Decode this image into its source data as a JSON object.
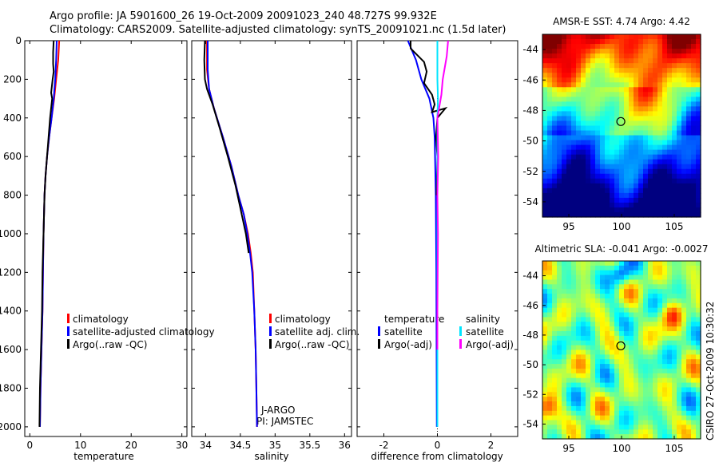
{
  "title_line1": "Argo profile: JA 5901600_26 19-Oct-2009 20091023_240 48.727S 99.932E",
  "title_line2": "Climatology: CARS2009. Satellite-adjusted climatology: synTS_20091021.nc (1.5d later)",
  "watermark": "CSIRO 27-Oct-2009 10:30:32",
  "colors": {
    "red": "#ff0000",
    "blue": "#0000ff",
    "black": "#000000",
    "cyan": "#00e5ff",
    "magenta": "#ff00ff"
  },
  "chart_data": [
    {
      "id": "temperature",
      "type": "line",
      "xlabel": "temperature",
      "xlim": [
        -1,
        31
      ],
      "ylim": [
        0,
        2050
      ],
      "y_inverted": true,
      "xticks": [
        0,
        10,
        20,
        30
      ],
      "xtick_labels": [
        "0",
        "10",
        "20",
        "30"
      ],
      "yticks": [
        0,
        200,
        400,
        600,
        800,
        1000,
        1200,
        1400,
        1600,
        1800,
        2000
      ],
      "ytick_labels": [
        "0",
        "200",
        "400",
        "600",
        "800",
        "1000",
        "1200",
        "1400",
        "1600",
        "1800",
        "2000"
      ],
      "legend": [
        "climatology",
        "satellite-adjusted climatology",
        "Argo(..raw -QC)"
      ],
      "legend_location": "lower-right",
      "series": [
        {
          "name": "climatology",
          "color": "#ff0000",
          "points": [
            [
              5.8,
              0
            ],
            [
              5.6,
              100
            ],
            [
              5.2,
              200
            ],
            [
              4.8,
              300
            ],
            [
              4.3,
              400
            ],
            [
              3.8,
              500
            ],
            [
              3.4,
              600
            ],
            [
              3.1,
              700
            ],
            [
              2.9,
              800
            ],
            [
              2.7,
              1000
            ],
            [
              2.6,
              1200
            ],
            [
              2.5,
              1400
            ],
            [
              2.3,
              1600
            ],
            [
              2.1,
              1800
            ],
            [
              2.0,
              2000
            ]
          ]
        },
        {
          "name": "satellite-adjusted climatology",
          "color": "#0000ff",
          "points": [
            [
              5.3,
              0
            ],
            [
              5.2,
              100
            ],
            [
              5.0,
              200
            ],
            [
              4.7,
              300
            ],
            [
              4.3,
              400
            ],
            [
              3.8,
              500
            ],
            [
              3.4,
              600
            ],
            [
              3.1,
              700
            ],
            [
              2.9,
              800
            ],
            [
              2.7,
              1000
            ],
            [
              2.6,
              1200
            ],
            [
              2.5,
              1400
            ],
            [
              2.3,
              1600
            ],
            [
              2.1,
              1800
            ],
            [
              2.0,
              2000
            ]
          ]
        },
        {
          "name": "Argo(..raw -QC)",
          "color": "#000000",
          "points": [
            [
              4.7,
              0
            ],
            [
              4.6,
              60
            ],
            [
              4.6,
              120
            ],
            [
              4.7,
              160
            ],
            [
              4.5,
              200
            ],
            [
              4.2,
              270
            ],
            [
              4.4,
              300
            ],
            [
              4.0,
              400
            ],
            [
              3.7,
              500
            ],
            [
              3.4,
              600
            ],
            [
              3.1,
              700
            ],
            [
              2.9,
              800
            ],
            [
              2.7,
              1000
            ],
            [
              2.5,
              1200
            ],
            [
              2.4,
              1400
            ],
            [
              2.2,
              1600
            ],
            [
              2.0,
              1800
            ],
            [
              1.9,
              2000
            ]
          ]
        }
      ]
    },
    {
      "id": "salinity",
      "type": "line",
      "xlabel": "salinity",
      "xlim": [
        33.8,
        36.1
      ],
      "ylim": [
        0,
        2050
      ],
      "y_inverted": true,
      "xticks": [
        34,
        34.5,
        35,
        35.5,
        36
      ],
      "xtick_labels": [
        "34",
        "34.5",
        "35",
        "35.5",
        "36"
      ],
      "legend": [
        "climatology",
        "satellite adj. clim.",
        "Argo(..raw -QC)"
      ],
      "legend_location": "lower-right",
      "annotations": [
        "J-ARGO",
        "PI: JAMSTEC"
      ],
      "series": [
        {
          "name": "climatology",
          "color": "#ff0000",
          "points": [
            [
              34.02,
              0
            ],
            [
              34.02,
              150
            ],
            [
              34.05,
              250
            ],
            [
              34.12,
              350
            ],
            [
              34.25,
              500
            ],
            [
              34.37,
              650
            ],
            [
              34.47,
              800
            ],
            [
              34.55,
              900
            ],
            [
              34.61,
              1000
            ],
            [
              34.65,
              1100
            ],
            [
              34.68,
              1200
            ],
            [
              34.7,
              1400
            ],
            [
              34.72,
              1600
            ],
            [
              34.73,
              1800
            ],
            [
              34.74,
              2000
            ]
          ]
        },
        {
          "name": "satellite adj. clim.",
          "color": "#0000ff",
          "points": [
            [
              34.03,
              0
            ],
            [
              34.03,
              150
            ],
            [
              34.05,
              250
            ],
            [
              34.12,
              350
            ],
            [
              34.25,
              500
            ],
            [
              34.37,
              650
            ],
            [
              34.47,
              800
            ],
            [
              34.55,
              900
            ],
            [
              34.6,
              1000
            ],
            [
              34.64,
              1100
            ],
            [
              34.67,
              1200
            ],
            [
              34.7,
              1400
            ],
            [
              34.72,
              1600
            ],
            [
              34.73,
              1800
            ],
            [
              34.74,
              2000
            ]
          ]
        },
        {
          "name": "Argo(..raw -QC)",
          "color": "#000000",
          "points": [
            [
              33.99,
              0
            ],
            [
              33.98,
              100
            ],
            [
              33.99,
              200
            ],
            [
              34.02,
              250
            ],
            [
              34.05,
              280
            ],
            [
              34.1,
              330
            ],
            [
              34.2,
              450
            ],
            [
              34.32,
              600
            ],
            [
              34.43,
              750
            ],
            [
              34.52,
              900
            ],
            [
              34.58,
              1000
            ],
            [
              34.62,
              1100
            ]
          ]
        }
      ]
    },
    {
      "id": "difference",
      "type": "line",
      "xlabel": "difference from climatology",
      "xlim": [
        -3,
        3
      ],
      "ylim": [
        0,
        2050
      ],
      "y_inverted": true,
      "xticks": [
        -2,
        0,
        2
      ],
      "xtick_labels": [
        "-2",
        "0",
        "2"
      ],
      "legend_groups": [
        {
          "title": "temperature",
          "entries": [
            "satellite",
            "Argo(-adj)"
          ]
        },
        {
          "title": "salinity",
          "entries": [
            "satellite",
            "Argo(-adj)"
          ]
        }
      ],
      "legend_location": "lower-right",
      "series": [
        {
          "name": "temperature satellite",
          "color": "#0000ff",
          "points": [
            [
              -1.1,
              0
            ],
            [
              -0.8,
              100
            ],
            [
              -0.6,
              200
            ],
            [
              -0.3,
              300
            ],
            [
              -0.15,
              400
            ],
            [
              -0.1,
              500
            ],
            [
              -0.06,
              800
            ],
            [
              -0.04,
              1200
            ],
            [
              -0.03,
              1600
            ],
            [
              -0.02,
              2000
            ]
          ]
        },
        {
          "name": "temperature Argo(-adj)",
          "color": "#000000",
          "points": [
            [
              -1.0,
              0
            ],
            [
              -1.0,
              40
            ],
            [
              -0.5,
              110
            ],
            [
              -0.4,
              160
            ],
            [
              -0.5,
              220
            ],
            [
              -0.2,
              280
            ],
            [
              -0.1,
              330
            ],
            [
              -0.2,
              370
            ],
            [
              0.3,
              350
            ],
            [
              0.0,
              400
            ],
            [
              -0.05,
              500
            ],
            [
              0.0,
              600
            ],
            [
              -0.03,
              800
            ]
          ]
        },
        {
          "name": "salinity satellite",
          "color": "#00e5ff",
          "points": [
            [
              0.0,
              0
            ],
            [
              0.0,
              100
            ],
            [
              0.0,
              200
            ],
            [
              0.02,
              300
            ],
            [
              0.0,
              400
            ],
            [
              0.0,
              600
            ],
            [
              0.0,
              1000
            ],
            [
              0.0,
              1600
            ],
            [
              0.0,
              2000
            ]
          ]
        },
        {
          "name": "salinity Argo(-adj)",
          "color": "#ff00ff",
          "points": [
            [
              0.4,
              0
            ],
            [
              0.35,
              80
            ],
            [
              0.2,
              200
            ],
            [
              0.15,
              280
            ],
            [
              0.0,
              400
            ],
            [
              0.03,
              600
            ],
            [
              0.0,
              800
            ],
            [
              0.02,
              1000
            ],
            [
              0.0,
              1400
            ],
            [
              0.0,
              1600
            ]
          ]
        }
      ]
    },
    {
      "id": "sst_map",
      "type": "heatmap",
      "title": "AMSR-E SST: 4.74  Argo: 4.42",
      "xlim": [
        92.5,
        107.5
      ],
      "ylim": [
        -55,
        -43
      ],
      "xticks": [
        95,
        100,
        105
      ],
      "xtick_labels": [
        "95",
        "100",
        "105"
      ],
      "yticks": [
        -44,
        -46,
        -48,
        -50,
        -52,
        -54
      ],
      "ytick_labels": [
        "-44",
        "-46",
        "-48",
        "-50",
        "-52",
        "-54"
      ],
      "marker": {
        "lon": 99.932,
        "lat": -48.727
      }
    },
    {
      "id": "sla_map",
      "type": "heatmap",
      "title": "Altimetric SLA: -0.041  Argo: -0.0027",
      "xlim": [
        92.5,
        107.5
      ],
      "ylim": [
        -55,
        -43
      ],
      "xticks": [
        95,
        100,
        105
      ],
      "xtick_labels": [
        "95",
        "100",
        "105"
      ],
      "yticks": [
        -44,
        -46,
        -48,
        -50,
        -52,
        -54
      ],
      "ytick_labels": [
        "-44",
        "-46",
        "-48",
        "-50",
        "-52",
        "-54"
      ],
      "marker": {
        "lon": 99.932,
        "lat": -48.727
      }
    }
  ]
}
